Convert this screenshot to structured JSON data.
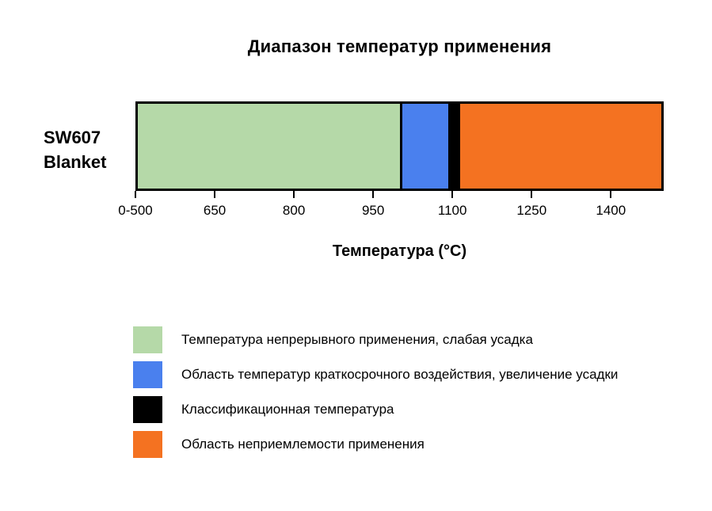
{
  "chart_data": {
    "type": "bar",
    "orientation": "horizontal-stacked",
    "title": "Диапазон температур применения",
    "xlabel": "Температура (°C)",
    "categories": [
      "SW607 Blanket"
    ],
    "category_label": {
      "line1": "SW607",
      "line2": "Blanket"
    },
    "axis_range_c": [
      500,
      1500
    ],
    "axis_note": "first tick compresses 0-500",
    "x_ticks": [
      {
        "label": "0-500",
        "value": 500
      },
      {
        "label": "650",
        "value": 650
      },
      {
        "label": "800",
        "value": 800
      },
      {
        "label": "950",
        "value": 950
      },
      {
        "label": "1100",
        "value": 1100
      },
      {
        "label": "1250",
        "value": 1250
      },
      {
        "label": "1400",
        "value": 1400
      }
    ],
    "series": [
      {
        "key": "continuous-use",
        "name": "Температура непрерывного применения, слабая усадка",
        "color": "#b5d9a8",
        "range_c": [
          0,
          1000
        ]
      },
      {
        "key": "short-term-exposure",
        "name": "Область температур краткосрочного воздействия, увеличение усадки",
        "color": "#4a80ee",
        "range_c": [
          1000,
          1093
        ]
      },
      {
        "key": "classification-temperature",
        "name": "Классификационная температура",
        "color": "#000000",
        "range_c": [
          1093,
          1111
        ],
        "value_c": 1100
      },
      {
        "key": "unsuitable-application",
        "name": "Область неприемлемости применения",
        "color": "#f47221",
        "range_c": [
          1111,
          1500
        ]
      }
    ],
    "legend_position": "bottom-left",
    "grid": false
  },
  "colors": {
    "background": "#ffffff",
    "bar_border": "#000000",
    "text": "#000000"
  }
}
